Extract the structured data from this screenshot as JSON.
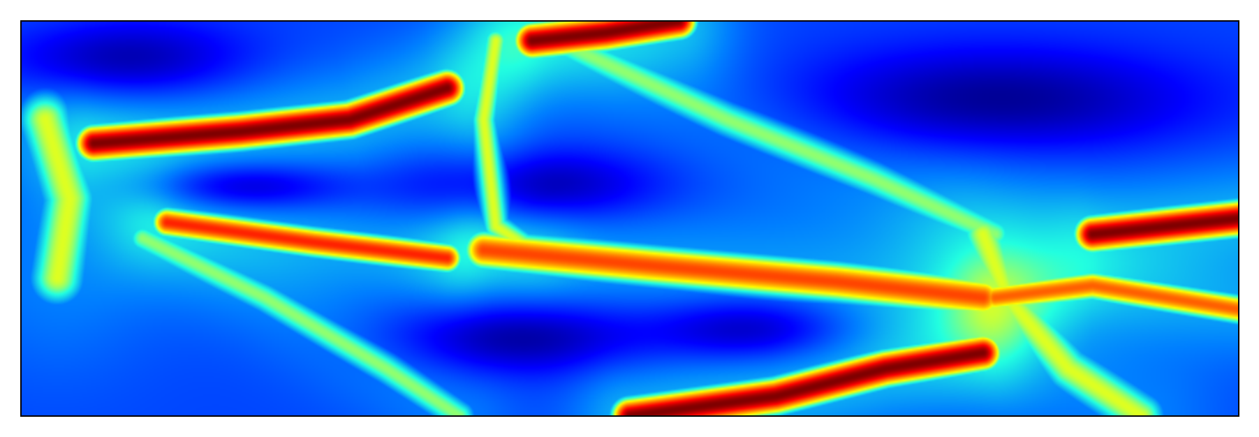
{
  "chart_data": {
    "type": "heatmap",
    "title": "",
    "xlabel": "",
    "ylabel": "",
    "colormap": "jet",
    "grid": false,
    "axis_ticks": false,
    "xlim": [
      0,
      1
    ],
    "ylim": [
      0,
      1
    ],
    "value_range": [
      0,
      1
    ],
    "colormap_stops": [
      "#00007f",
      "#0000ff",
      "#007fff",
      "#22ffe0",
      "#ffff00",
      "#ff7f00",
      "#ff0000",
      "#7f0000"
    ],
    "background_level": 0.22,
    "ridges": [
      {
        "name": "upper-left-red-band",
        "points": [
          [
            0.06,
            0.69
          ],
          [
            0.18,
            0.72
          ],
          [
            0.27,
            0.75
          ],
          [
            0.35,
            0.83
          ]
        ],
        "peak": 1.0,
        "width": 0.035
      },
      {
        "name": "top-red-band",
        "points": [
          [
            0.42,
            0.95
          ],
          [
            0.48,
            0.97
          ],
          [
            0.54,
            1.0
          ]
        ],
        "peak": 1.0,
        "width": 0.035
      },
      {
        "name": "left-yellow-band",
        "points": [
          [
            0.12,
            0.49
          ],
          [
            0.24,
            0.44
          ],
          [
            0.35,
            0.4
          ]
        ],
        "peak": 0.82,
        "width": 0.03
      },
      {
        "name": "center-yellow-band",
        "points": [
          [
            0.38,
            0.42
          ],
          [
            0.52,
            0.38
          ],
          [
            0.67,
            0.34
          ],
          [
            0.79,
            0.3
          ]
        ],
        "peak": 0.78,
        "width": 0.04
      },
      {
        "name": "lower-red-band",
        "points": [
          [
            0.5,
            0.0
          ],
          [
            0.62,
            0.05
          ],
          [
            0.71,
            0.12
          ],
          [
            0.79,
            0.16
          ]
        ],
        "peak": 1.0,
        "width": 0.035
      },
      {
        "name": "right-red-band",
        "points": [
          [
            0.88,
            0.46
          ],
          [
            0.94,
            0.48
          ],
          [
            1.0,
            0.5
          ]
        ],
        "peak": 1.0,
        "width": 0.035
      },
      {
        "name": "right-yellow-band",
        "points": [
          [
            0.8,
            0.3
          ],
          [
            0.88,
            0.33
          ],
          [
            1.0,
            0.27
          ]
        ],
        "peak": 0.75,
        "width": 0.03
      },
      {
        "name": "left-vertical-glow",
        "points": [
          [
            0.02,
            0.75
          ],
          [
            0.04,
            0.55
          ],
          [
            0.03,
            0.35
          ]
        ],
        "peak": 0.55,
        "width": 0.06
      },
      {
        "name": "diagonal-cyan-ridge",
        "points": [
          [
            0.44,
            0.95
          ],
          [
            0.58,
            0.75
          ],
          [
            0.7,
            0.6
          ],
          [
            0.8,
            0.46
          ]
        ],
        "peak": 0.5,
        "width": 0.04
      },
      {
        "name": "lower-cyan-ridge",
        "points": [
          [
            0.1,
            0.45
          ],
          [
            0.2,
            0.3
          ],
          [
            0.3,
            0.12
          ],
          [
            0.36,
            0.0
          ]
        ],
        "peak": 0.5,
        "width": 0.035
      },
      {
        "name": "mid-cyan-ridge",
        "points": [
          [
            0.39,
            0.95
          ],
          [
            0.38,
            0.75
          ],
          [
            0.39,
            0.48
          ],
          [
            0.42,
            0.42
          ]
        ],
        "peak": 0.55,
        "width": 0.03
      },
      {
        "name": "right-cyan-glow",
        "points": [
          [
            0.79,
            0.46
          ],
          [
            0.81,
            0.3
          ],
          [
            0.86,
            0.12
          ],
          [
            0.92,
            0.0
          ]
        ],
        "peak": 0.55,
        "width": 0.05
      }
    ],
    "troughs": [
      {
        "name": "top-left-dark",
        "center": [
          0.08,
          0.9
        ],
        "radius": [
          0.1,
          0.1
        ]
      },
      {
        "name": "upper-center-dark",
        "center": [
          0.42,
          0.58
        ],
        "radius": [
          0.1,
          0.09
        ]
      },
      {
        "name": "upper-right-dark",
        "center": [
          0.8,
          0.8
        ],
        "radius": [
          0.16,
          0.13
        ]
      },
      {
        "name": "lower-center-dark",
        "center": [
          0.41,
          0.2
        ],
        "radius": [
          0.1,
          0.09
        ]
      },
      {
        "name": "lower-right-dark",
        "center": [
          0.6,
          0.22
        ],
        "radius": [
          0.08,
          0.08
        ]
      },
      {
        "name": "left-center-dark",
        "center": [
          0.18,
          0.58
        ],
        "radius": [
          0.08,
          0.06
        ]
      }
    ]
  }
}
